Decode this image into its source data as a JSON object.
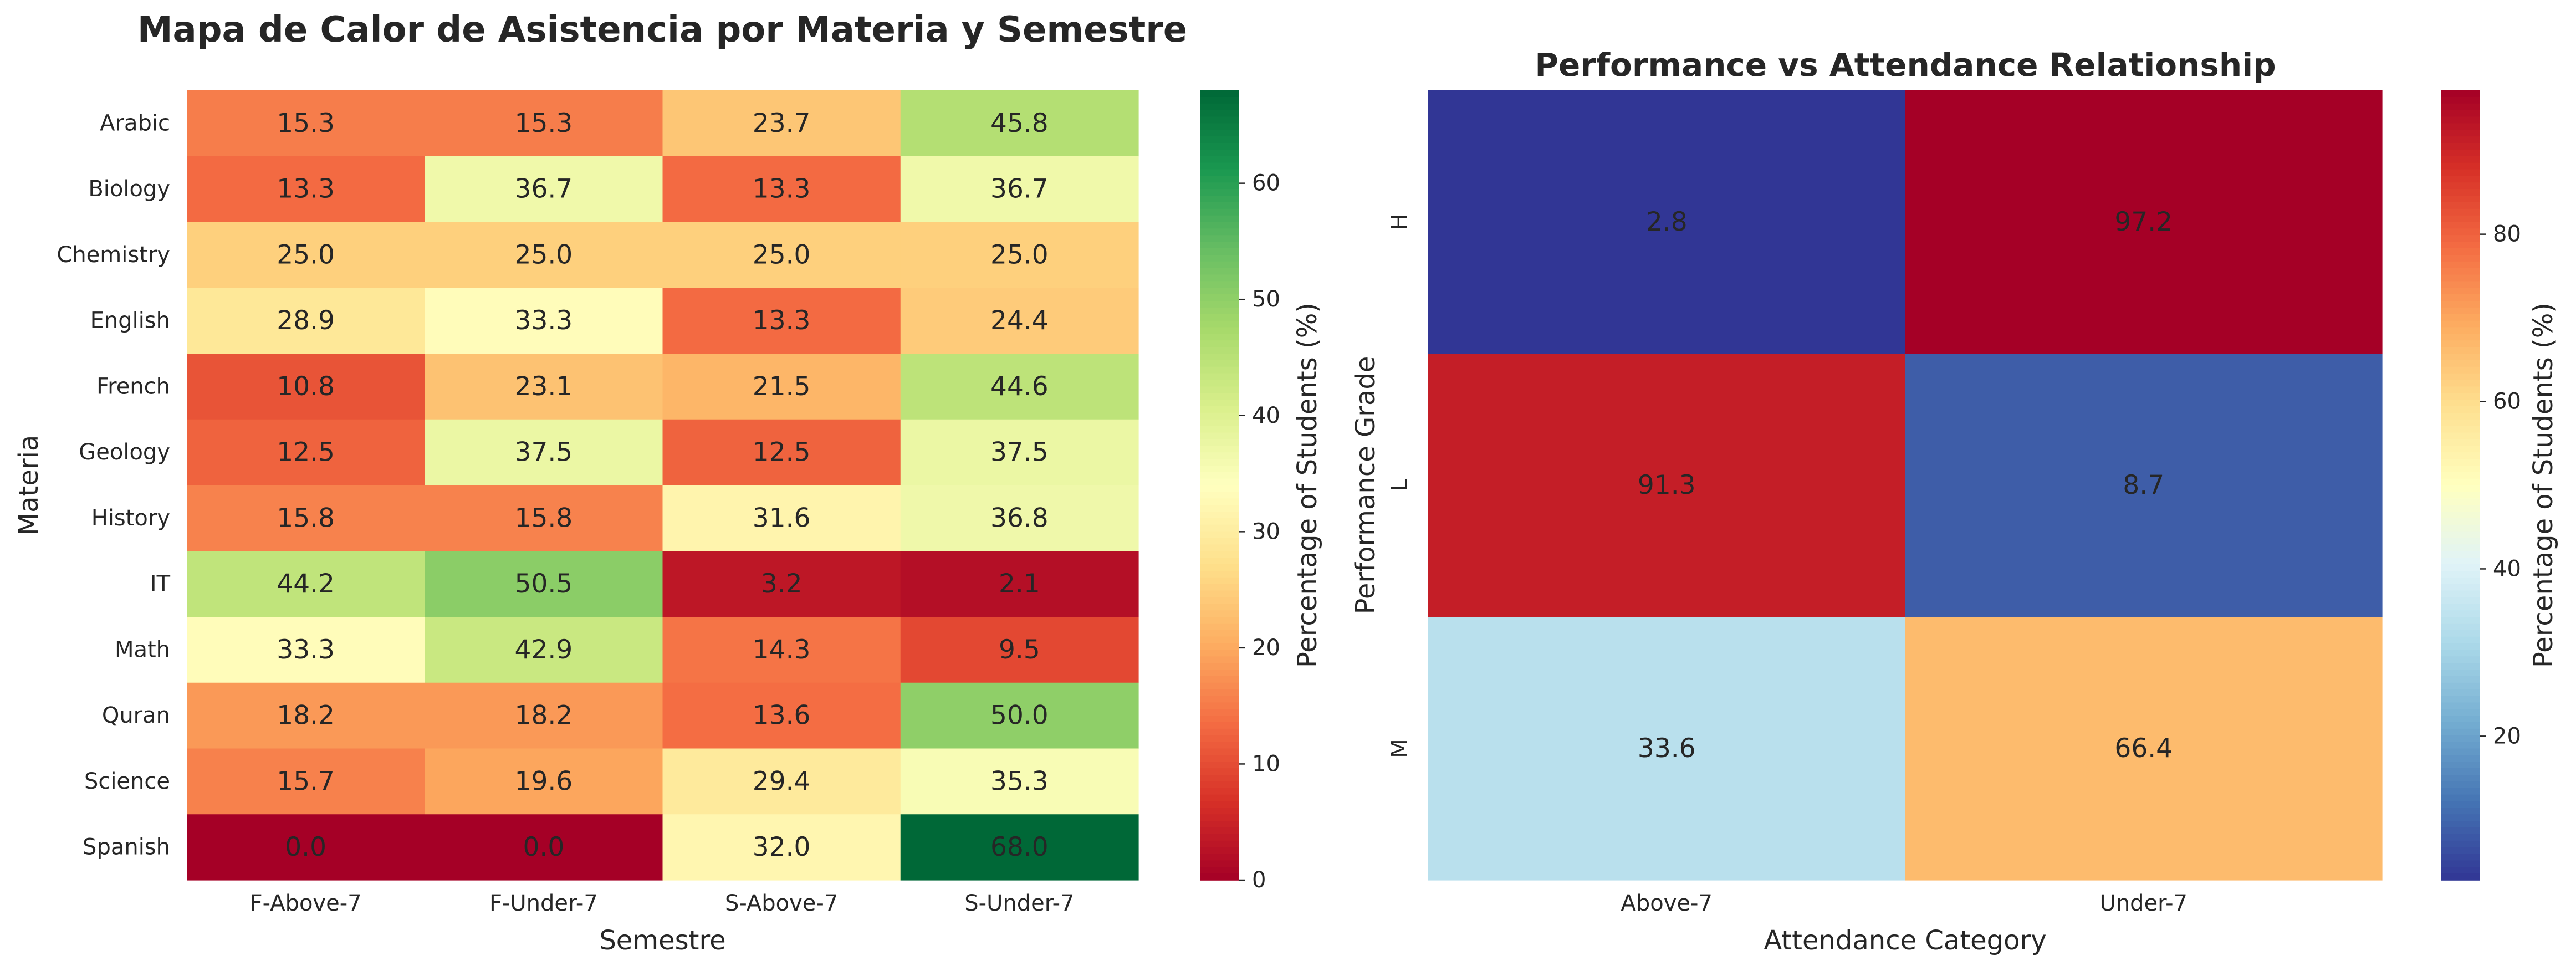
{
  "chart_data": [
    {
      "type": "heatmap",
      "title": "Mapa de Calor de Asistencia por Materia y Semestre",
      "xlabel": "Semestre",
      "ylabel": "Materia",
      "colorbar_label": "Percentage of Students (%)",
      "colormap": "RdYlGn_r",
      "vmin": 0,
      "vmax": 68,
      "colorbar_ticks": [
        "0",
        "10",
        "20",
        "30",
        "40",
        "50",
        "60"
      ],
      "x_categories": [
        "F-Above-7",
        "F-Under-7",
        "S-Above-7",
        "S-Under-7"
      ],
      "y_categories": [
        "Arabic",
        "Biology",
        "Chemistry",
        "English",
        "French",
        "Geology",
        "History",
        "IT",
        "Math",
        "Quran",
        "Science",
        "Spanish"
      ],
      "values": [
        [
          15.3,
          15.3,
          23.7,
          45.8
        ],
        [
          13.3,
          36.7,
          13.3,
          36.7
        ],
        [
          25.0,
          25.0,
          25.0,
          25.0
        ],
        [
          28.9,
          33.3,
          13.3,
          24.4
        ],
        [
          10.8,
          23.1,
          21.5,
          44.6
        ],
        [
          12.5,
          37.5,
          12.5,
          37.5
        ],
        [
          15.8,
          15.8,
          31.6,
          36.8
        ],
        [
          44.2,
          50.5,
          3.2,
          2.1
        ],
        [
          33.3,
          42.9,
          14.3,
          9.5
        ],
        [
          18.2,
          18.2,
          13.6,
          50.0
        ],
        [
          15.7,
          19.6,
          29.4,
          35.3
        ],
        [
          0.0,
          0.0,
          32.0,
          68.0
        ]
      ],
      "value_labels": [
        [
          "15.3",
          "15.3",
          "23.7",
          "45.8"
        ],
        [
          "13.3",
          "36.7",
          "13.3",
          "36.7"
        ],
        [
          "25.0",
          "25.0",
          "25.0",
          "25.0"
        ],
        [
          "28.9",
          "33.3",
          "13.3",
          "24.4"
        ],
        [
          "10.8",
          "23.1",
          "21.5",
          "44.6"
        ],
        [
          "12.5",
          "37.5",
          "12.5",
          "37.5"
        ],
        [
          "15.8",
          "15.8",
          "31.6",
          "36.8"
        ],
        [
          "44.2",
          "50.5",
          "3.2",
          "2.1"
        ],
        [
          "33.3",
          "42.9",
          "14.3",
          "9.5"
        ],
        [
          "18.2",
          "18.2",
          "13.6",
          "50.0"
        ],
        [
          "15.7",
          "19.6",
          "29.4",
          "35.3"
        ],
        [
          "0.0",
          "0.0",
          "32.0",
          "68.0"
        ]
      ]
    },
    {
      "type": "heatmap",
      "title": "Performance vs Attendance Relationship",
      "xlabel": "Attendance Category",
      "ylabel": "Performance Grade",
      "colorbar_label": "Percentage of Students (%)",
      "colormap": "RdYlBu_r",
      "vmin": 2.8,
      "vmax": 97.2,
      "colorbar_ticks": [
        "20",
        "40",
        "60",
        "80"
      ],
      "x_categories": [
        "Above-7",
        "Under-7"
      ],
      "y_categories": [
        "H",
        "L",
        "M"
      ],
      "values": [
        [
          2.8,
          97.2
        ],
        [
          91.3,
          8.7
        ],
        [
          33.6,
          66.4
        ]
      ],
      "value_labels": [
        [
          "2.8",
          "97.2"
        ],
        [
          "91.3",
          "8.7"
        ],
        [
          "33.6",
          "66.4"
        ]
      ]
    }
  ]
}
